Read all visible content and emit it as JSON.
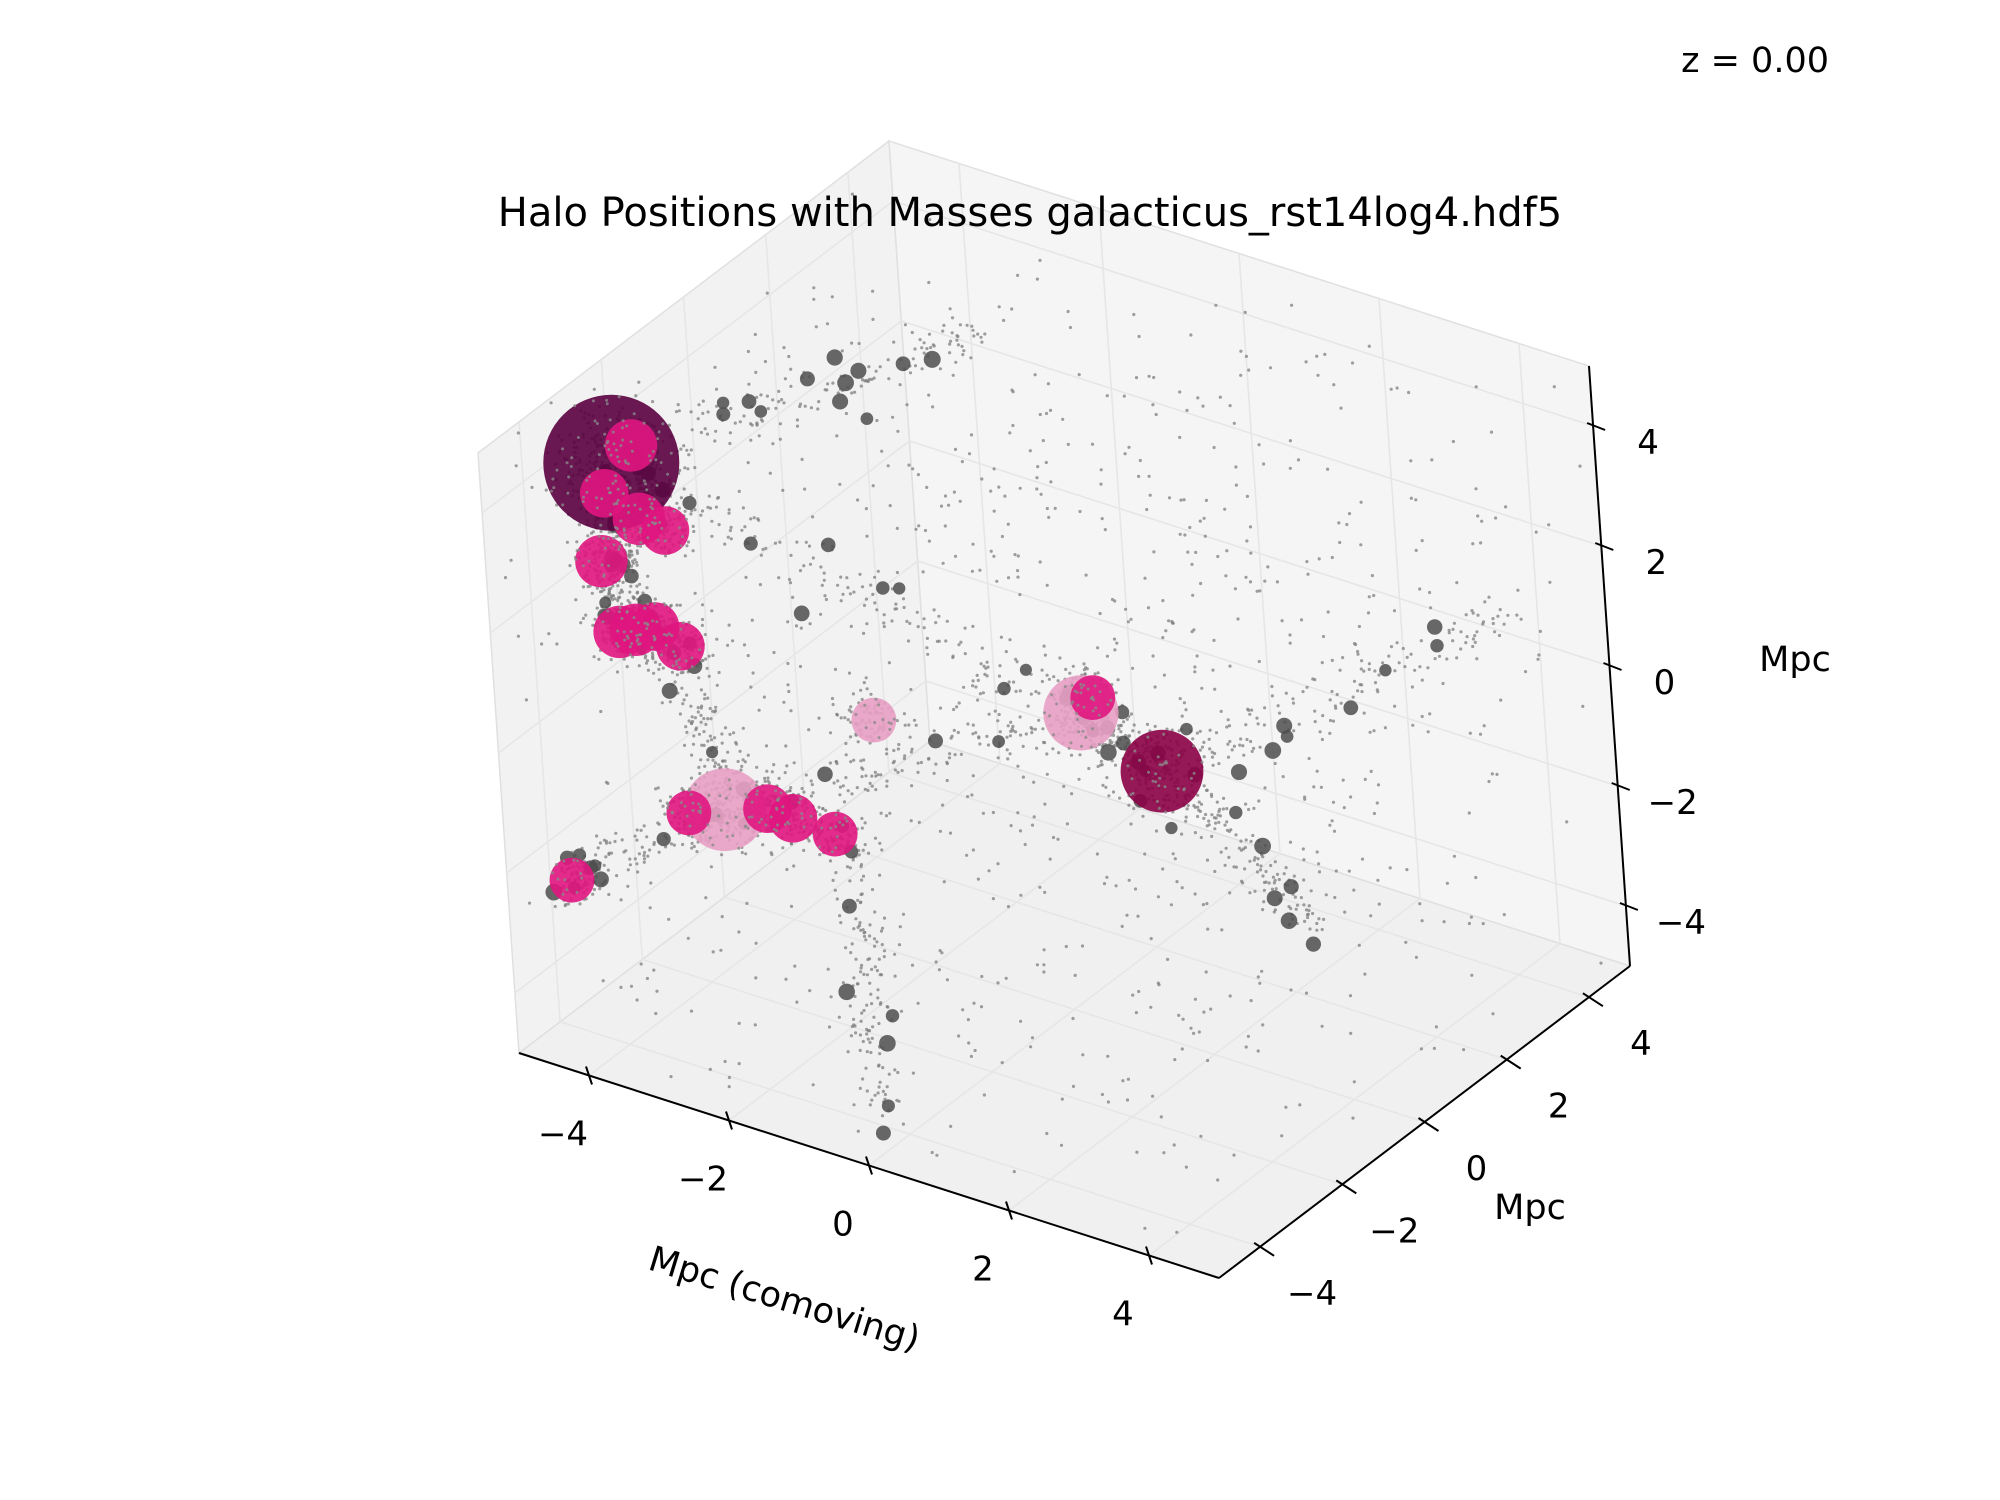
{
  "chart_data": {
    "type": "scatter",
    "projection": "3d",
    "title": "Halo Positions with Masses galacticus_rst14log4.hdf5",
    "redshift_label": "z = 0.00",
    "xlabel": "Mpc (comoving)",
    "ylabel": "Mpc",
    "zlabel": "Mpc",
    "xlim": [
      -5,
      5
    ],
    "ylim": [
      -5,
      5
    ],
    "zlim": [
      -5,
      5
    ],
    "xticks": [
      "−4",
      "−2",
      "0",
      "2",
      "4"
    ],
    "yticks": [
      "−4",
      "−2",
      "0",
      "2",
      "4"
    ],
    "zticks": [
      "−4",
      "−2",
      "0",
      "2",
      "4"
    ],
    "grid": true,
    "colors": {
      "particles": "#7f7f7f",
      "halo_dark": "#4d4d4d",
      "halo_pink": "#e0157f",
      "halo_light_pink": "#e8a0c4",
      "halo_maroon": "#8b0046",
      "halo_deep": "#5a0040",
      "pane": "#f2f2f2",
      "grid": "#e6e6e6"
    },
    "halos": [
      {
        "x": -4.2,
        "y": -3.2,
        "z": 4.2,
        "mass": 1.5,
        "color": "#5a0040"
      },
      {
        "x": -3.6,
        "y": -3.6,
        "z": 3.7,
        "mass": 0.4,
        "color": "#e0157f"
      },
      {
        "x": -4.4,
        "y": -2.4,
        "z": 4.0,
        "mass": 0.4,
        "color": "#e0157f"
      },
      {
        "x": -4.0,
        "y": -3.9,
        "z": 3.0,
        "mass": 0.4,
        "color": "#e0157f"
      },
      {
        "x": -3.6,
        "y": -3.4,
        "z": 1.8,
        "mass": 0.35,
        "color": "#e0157f"
      },
      {
        "x": -3.5,
        "y": -3.0,
        "z": 1.3,
        "mass": 0.35,
        "color": "#e0157f"
      },
      {
        "x": -3.7,
        "y": -4.2,
        "z": 4.4,
        "mass": 0.35,
        "color": "#e0157f"
      },
      {
        "x": -2.6,
        "y": -4.6,
        "z": 4.4,
        "mass": 0.35,
        "color": "#e0157f"
      },
      {
        "x": -3.0,
        "y": -4.8,
        "z": 2.7,
        "mass": 0.4,
        "color": "#e0157f"
      },
      {
        "x": -3.3,
        "y": -4.7,
        "z": 2.5,
        "mass": 0.4,
        "color": "#e0157f"
      },
      {
        "x": -3.9,
        "y": -1.6,
        "z": -2.3,
        "mass": 0.8,
        "color": "#e8a0c4"
      },
      {
        "x": -3.4,
        "y": -1.4,
        "z": -2.2,
        "mass": 0.35,
        "color": "#e0157f"
      },
      {
        "x": -3.1,
        "y": -1.3,
        "z": -2.3,
        "mass": 0.35,
        "color": "#e0157f"
      },
      {
        "x": -4.3,
        "y": -1.8,
        "z": -2.4,
        "mass": 0.3,
        "color": "#e0157f"
      },
      {
        "x": -5.0,
        "y": -3.5,
        "z": -2.9,
        "mass": 0.3,
        "color": "#e0157f"
      },
      {
        "x": -1.3,
        "y": -3.2,
        "z": -0.9,
        "mass": 0.3,
        "color": "#e0157f"
      },
      {
        "x": -1.0,
        "y": -2.6,
        "z": 0.8,
        "mass": 0.3,
        "color": "#e8a0c4"
      },
      {
        "x": 1.4,
        "y": -1.6,
        "z": 1.3,
        "mass": 0.7,
        "color": "#e8a0c4"
      },
      {
        "x": 1.4,
        "y": -1.3,
        "z": 1.4,
        "mass": 0.3,
        "color": "#e0157f"
      },
      {
        "x": 2.4,
        "y": -1.4,
        "z": 0.6,
        "mass": 0.8,
        "color": "#8b0046"
      }
    ]
  }
}
